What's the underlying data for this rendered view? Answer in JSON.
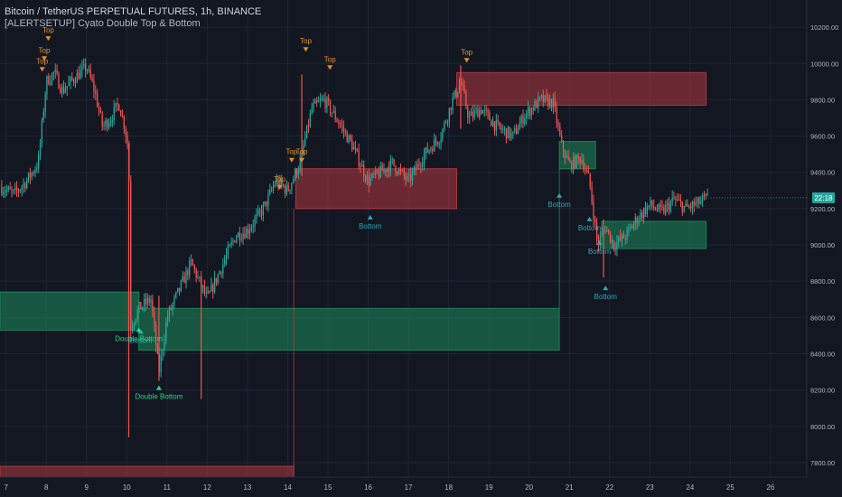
{
  "header": {
    "symbol_line": "Bitcoin / TetherUS PERPETUAL FUTURES, 1h, BINANCE",
    "indicator_line": "[ALERTSETUP] Cyato Double Top & Bottom"
  },
  "price_tag": "22:18",
  "colors": {
    "background": "#131722",
    "grid": "#1f2433",
    "up": "#26a69a",
    "down": "#ef5350",
    "zone_red": "#b2383f",
    "zone_green": "#1b8a5a",
    "top_marker": "#e0902a",
    "bottom_marker": "#2aa6b9",
    "double_bottom": "#26d98a",
    "price_tag_bg": "#26a69a",
    "axis_text": "#b2b5be"
  },
  "chart_data": {
    "type": "candlestick",
    "title": "Bitcoin / TetherUS PERPETUAL FUTURES, 1h, BINANCE",
    "x_axis": {
      "unit": "day",
      "range": [
        6.85,
        26.9
      ],
      "ticks": [
        7,
        8,
        9,
        10,
        11,
        12,
        13,
        14,
        15,
        16,
        17,
        18,
        19,
        20,
        21,
        22,
        23,
        24,
        25,
        26
      ]
    },
    "y_axis": {
      "range": [
        7720,
        10350
      ],
      "position": "right",
      "ticks": [
        7800,
        8000,
        8200,
        8400,
        8600,
        8800,
        9000,
        9200,
        9400,
        9600,
        9800,
        10000,
        10200
      ]
    },
    "price_path": [
      [
        6.85,
        9320
      ],
      [
        7.2,
        9280
      ],
      [
        7.5,
        9350
      ],
      [
        7.8,
        9450
      ],
      [
        8.0,
        9900
      ],
      [
        8.2,
        9950
      ],
      [
        8.4,
        9850
      ],
      [
        8.7,
        9920
      ],
      [
        9.0,
        9980
      ],
      [
        9.2,
        9850
      ],
      [
        9.4,
        9650
      ],
      [
        9.6,
        9700
      ],
      [
        9.8,
        9780
      ],
      [
        9.95,
        9650
      ],
      [
        10.05,
        9520
      ],
      [
        10.1,
        8550
      ],
      [
        10.3,
        8650
      ],
      [
        10.6,
        8700
      ],
      [
        10.8,
        8300
      ],
      [
        11.0,
        8600
      ],
      [
        11.3,
        8750
      ],
      [
        11.6,
        8900
      ],
      [
        12.0,
        8700
      ],
      [
        12.3,
        8850
      ],
      [
        12.7,
        9050
      ],
      [
        13.0,
        9080
      ],
      [
        13.4,
        9200
      ],
      [
        13.7,
        9350
      ],
      [
        14.0,
        9300
      ],
      [
        14.3,
        9450
      ],
      [
        14.6,
        9750
      ],
      [
        14.9,
        9800
      ],
      [
        15.2,
        9700
      ],
      [
        15.6,
        9550
      ],
      [
        16.0,
        9350
      ],
      [
        16.3,
        9400
      ],
      [
        16.6,
        9450
      ],
      [
        17.0,
        9350
      ],
      [
        17.4,
        9500
      ],
      [
        17.8,
        9600
      ],
      [
        18.1,
        9800
      ],
      [
        18.3,
        9900
      ],
      [
        18.5,
        9700
      ],
      [
        18.8,
        9750
      ],
      [
        19.2,
        9650
      ],
      [
        19.6,
        9600
      ],
      [
        19.9,
        9720
      ],
      [
        20.3,
        9800
      ],
      [
        20.6,
        9780
      ],
      [
        20.8,
        9550
      ],
      [
        21.0,
        9440
      ],
      [
        21.3,
        9480
      ],
      [
        21.5,
        9350
      ],
      [
        21.7,
        9000
      ],
      [
        21.9,
        9100
      ],
      [
        22.1,
        9000
      ],
      [
        22.4,
        9050
      ],
      [
        22.7,
        9150
      ],
      [
        23.0,
        9220
      ],
      [
        23.3,
        9180
      ],
      [
        23.6,
        9250
      ],
      [
        23.9,
        9200
      ],
      [
        24.2,
        9230
      ],
      [
        24.45,
        9260
      ]
    ],
    "spikes": [
      {
        "x": 10.05,
        "low": 7940,
        "high": 9560
      },
      {
        "x": 10.8,
        "low": 8250,
        "high": 8720
      },
      {
        "x": 11.85,
        "low": 8150,
        "high": 8820
      },
      {
        "x": 14.35,
        "low": 9380,
        "high": 9940
      },
      {
        "x": 18.3,
        "low": 9640,
        "high": 9990
      },
      {
        "x": 21.85,
        "low": 8820,
        "high": 9140
      }
    ],
    "zones": [
      {
        "type": "resistance",
        "x0": 6.85,
        "x1": 14.15,
        "y0": 7720,
        "y1": 7780
      },
      {
        "type": "support",
        "x0": 6.85,
        "x1": 10.3,
        "y0": 8530,
        "y1": 8740
      },
      {
        "type": "support",
        "x0": 10.3,
        "x1": 20.75,
        "y0": 8420,
        "y1": 8650
      },
      {
        "type": "resistance",
        "x0": 14.2,
        "x1": 18.2,
        "y0": 9200,
        "y1": 9420
      },
      {
        "type": "resistance",
        "x0": 18.2,
        "x1": 24.4,
        "y0": 9770,
        "y1": 9950
      },
      {
        "type": "support",
        "x0": 20.75,
        "x1": 21.65,
        "y0": 9420,
        "y1": 9570
      },
      {
        "type": "support",
        "x0": 21.8,
        "x1": 24.4,
        "y0": 8980,
        "y1": 9130
      }
    ],
    "markers": [
      {
        "kind": "top",
        "x": 8.05,
        "price": 10110,
        "label": "Top"
      },
      {
        "kind": "top",
        "x": 7.95,
        "price": 10000,
        "label": "Top"
      },
      {
        "kind": "top",
        "x": 7.9,
        "price": 9940,
        "label": "Top"
      },
      {
        "kind": "top",
        "x": 14.45,
        "price": 10050,
        "label": "Top"
      },
      {
        "kind": "top",
        "x": 15.05,
        "price": 9950,
        "label": "Top"
      },
      {
        "kind": "top",
        "x": 18.45,
        "price": 9990,
        "label": "Top"
      },
      {
        "kind": "top",
        "x": 14.1,
        "price": 9440,
        "label": "Top"
      },
      {
        "kind": "top",
        "x": 14.35,
        "price": 9440,
        "label": "Top"
      },
      {
        "kind": "top",
        "x": 13.8,
        "price": 9290,
        "label": "Top"
      },
      {
        "kind": "bottom",
        "x": 16.05,
        "price": 9180,
        "label": "Bottom"
      },
      {
        "kind": "bottom",
        "x": 20.75,
        "price": 9300,
        "label": "Bottom"
      },
      {
        "kind": "bottom",
        "x": 21.5,
        "price": 9170,
        "label": "Bottom"
      },
      {
        "kind": "bottom",
        "x": 21.75,
        "price": 9040,
        "label": "Bottom"
      },
      {
        "kind": "bottom",
        "x": 21.9,
        "price": 8790,
        "label": "Bottom"
      },
      {
        "kind": "bottom",
        "x": 10.35,
        "price": 8550,
        "label": "Bottom"
      },
      {
        "kind": "double-bottom",
        "x": 10.3,
        "price": 8560,
        "label": "Double Bottom"
      },
      {
        "kind": "double-bottom",
        "x": 10.8,
        "price": 8240,
        "label": "Double Bottom"
      }
    ],
    "last_price": 9260
  }
}
